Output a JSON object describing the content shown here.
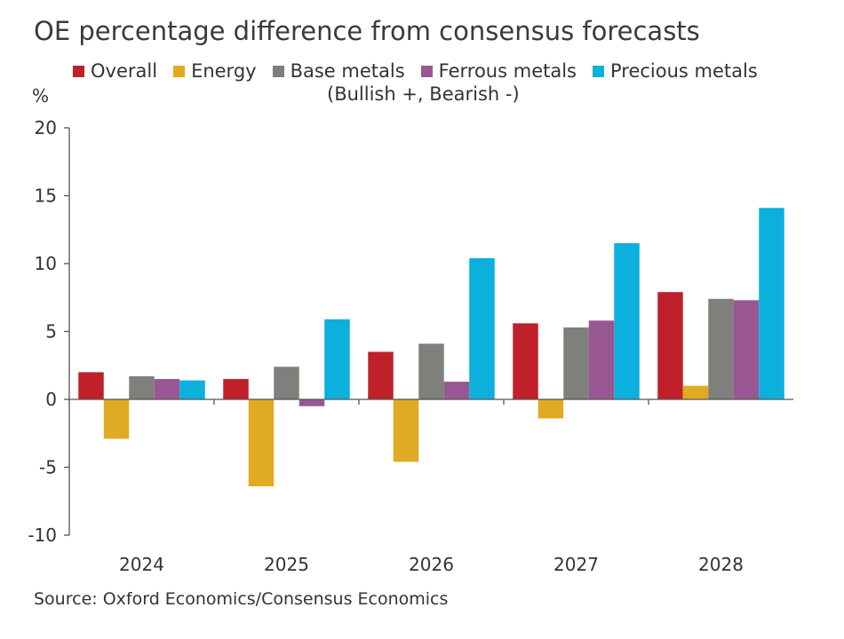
{
  "title": "OE percentage difference from consensus forecasts",
  "subtitle": "(Bullish +, Bearish -)",
  "unit_label": "%",
  "source": "Source: Oxford Economics/Consensus Economics",
  "chart_data": {
    "type": "bar",
    "categories": [
      "2024",
      "2025",
      "2026",
      "2027",
      "2028"
    ],
    "series": [
      {
        "name": "Overall",
        "color": "#c0202a",
        "values": [
          2.0,
          1.5,
          3.5,
          5.6,
          7.9
        ]
      },
      {
        "name": "Energy",
        "color": "#e0ab22",
        "values": [
          -2.9,
          -6.4,
          -4.6,
          -1.4,
          1.0
        ]
      },
      {
        "name": "Base metals",
        "color": "#7f7f7b",
        "values": [
          1.7,
          2.4,
          4.1,
          5.3,
          7.4
        ]
      },
      {
        "name": "Ferrous metals",
        "color": "#985792",
        "values": [
          1.5,
          -0.5,
          1.3,
          5.8,
          7.3
        ]
      },
      {
        "name": "Precious metals",
        "color": "#0bb0dc",
        "values": [
          1.4,
          5.9,
          10.4,
          11.5,
          14.1
        ]
      }
    ],
    "ylim": [
      -10,
      20
    ],
    "yticks": [
      -10,
      -5,
      0,
      5,
      10,
      15,
      20
    ],
    "legend_position": "top",
    "grid": false
  }
}
